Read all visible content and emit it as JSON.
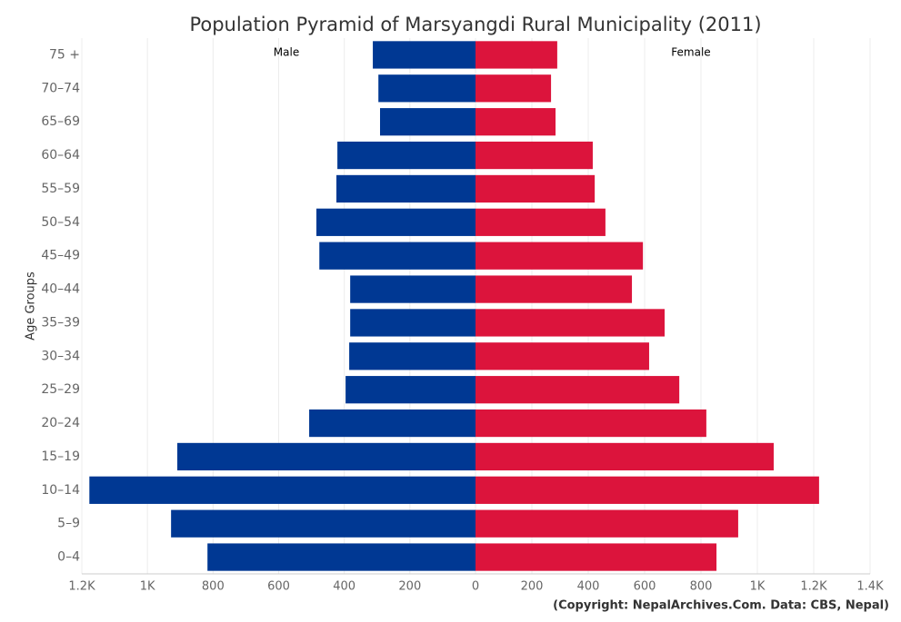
{
  "chart_data": {
    "type": "pyramid",
    "title": "Population Pyramid of Marsyangdi Rural Municipality (2011)",
    "y_label": "Age Groups",
    "credit": "(Copyright: NepalArchives.Com. Data: CBS, Nepal)",
    "categories": [
      "0–4",
      "5–9",
      "10–14",
      "15–19",
      "20–24",
      "25–29",
      "30–34",
      "35–39",
      "40–44",
      "45–49",
      "50–54",
      "55–59",
      "60–64",
      "65–69",
      "70–74",
      "75 +"
    ],
    "series": [
      {
        "name": "Male",
        "color": "#003893",
        "axis": "x_left",
        "values": [
          817,
          928,
          1177,
          909,
          507,
          396,
          385,
          382,
          382,
          476,
          485,
          424,
          421,
          291,
          296,
          313
        ]
      },
      {
        "name": "Female",
        "color": "#dc143c",
        "values": [
          855,
          932,
          1219,
          1058,
          819,
          723,
          616,
          671,
          555,
          594,
          461,
          423,
          416,
          284,
          268,
          290
        ]
      }
    ],
    "x_left_lim": [
      1200,
      0
    ],
    "x_left_ticks": [
      {
        "value": 1200,
        "label": "1.2K"
      },
      {
        "value": 1000,
        "label": "1K"
      },
      800,
      600,
      400,
      200
    ],
    "xlim": [
      0,
      1400
    ],
    "xticks": [
      0,
      200,
      400,
      600,
      800,
      {
        "value": 1000,
        "label": "1K"
      },
      {
        "value": 1200,
        "label": "1.2K"
      },
      {
        "value": 1400,
        "label": "1.4K"
      }
    ],
    "grid": true
  }
}
